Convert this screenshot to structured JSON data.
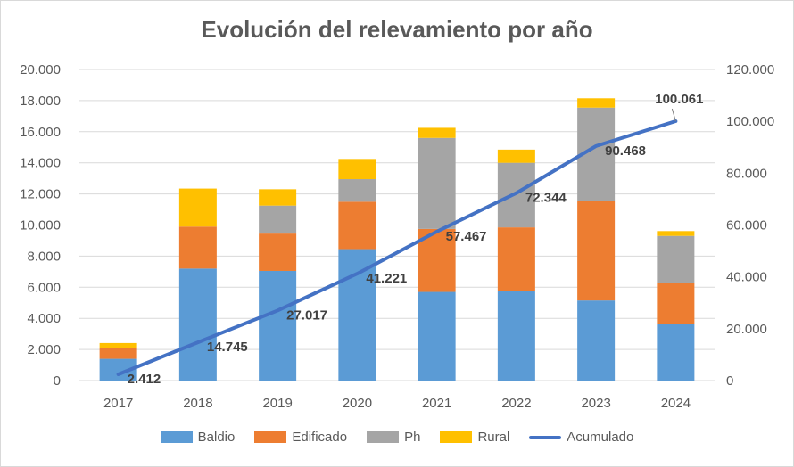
{
  "chart_data": {
    "type": "bar",
    "stacked": true,
    "title": "Evolución del relevamiento por año",
    "categories": [
      "2017",
      "2018",
      "2019",
      "2020",
      "2021",
      "2022",
      "2023",
      "2024"
    ],
    "series": [
      {
        "name": "Baldio",
        "type": "bar",
        "axis": "left",
        "color": "#5b9bd5",
        "values": [
          1400,
          7200,
          7050,
          8450,
          5700,
          5750,
          5150,
          3650
        ]
      },
      {
        "name": "Edificado",
        "type": "bar",
        "axis": "left",
        "color": "#ed7d31",
        "values": [
          700,
          2700,
          2400,
          3050,
          4050,
          4100,
          6400,
          2650
        ]
      },
      {
        "name": "Ph",
        "type": "bar",
        "axis": "left",
        "color": "#a5a5a5",
        "values": [
          0,
          0,
          1800,
          1450,
          5850,
          4150,
          6000,
          3000
        ]
      },
      {
        "name": "Rural",
        "type": "bar",
        "axis": "left",
        "color": "#ffc000",
        "values": [
          312,
          2445,
          1050,
          1300,
          650,
          850,
          600,
          310
        ]
      },
      {
        "name": "Acumulado",
        "type": "line",
        "axis": "right",
        "color": "#4472c4",
        "values": [
          2412,
          14745,
          27017,
          41221,
          57467,
          72344,
          90468,
          100061
        ],
        "labels": [
          "2.412",
          "14.745",
          "27.017",
          "41.221",
          "57.467",
          "72.344",
          "90.468",
          "100.061"
        ]
      }
    ],
    "y_left": {
      "min": 0,
      "max": 20000,
      "step": 2000,
      "tick_labels": [
        "0",
        "2.000",
        "4.000",
        "6.000",
        "8.000",
        "10.000",
        "12.000",
        "14.000",
        "16.000",
        "18.000",
        "20.000"
      ]
    },
    "y_right": {
      "min": 0,
      "max": 120000,
      "step": 20000,
      "tick_labels": [
        "0",
        "20.000",
        "40.000",
        "60.000",
        "80.000",
        "100.000",
        "120.000"
      ]
    },
    "grid": true,
    "legend_position": "bottom"
  }
}
